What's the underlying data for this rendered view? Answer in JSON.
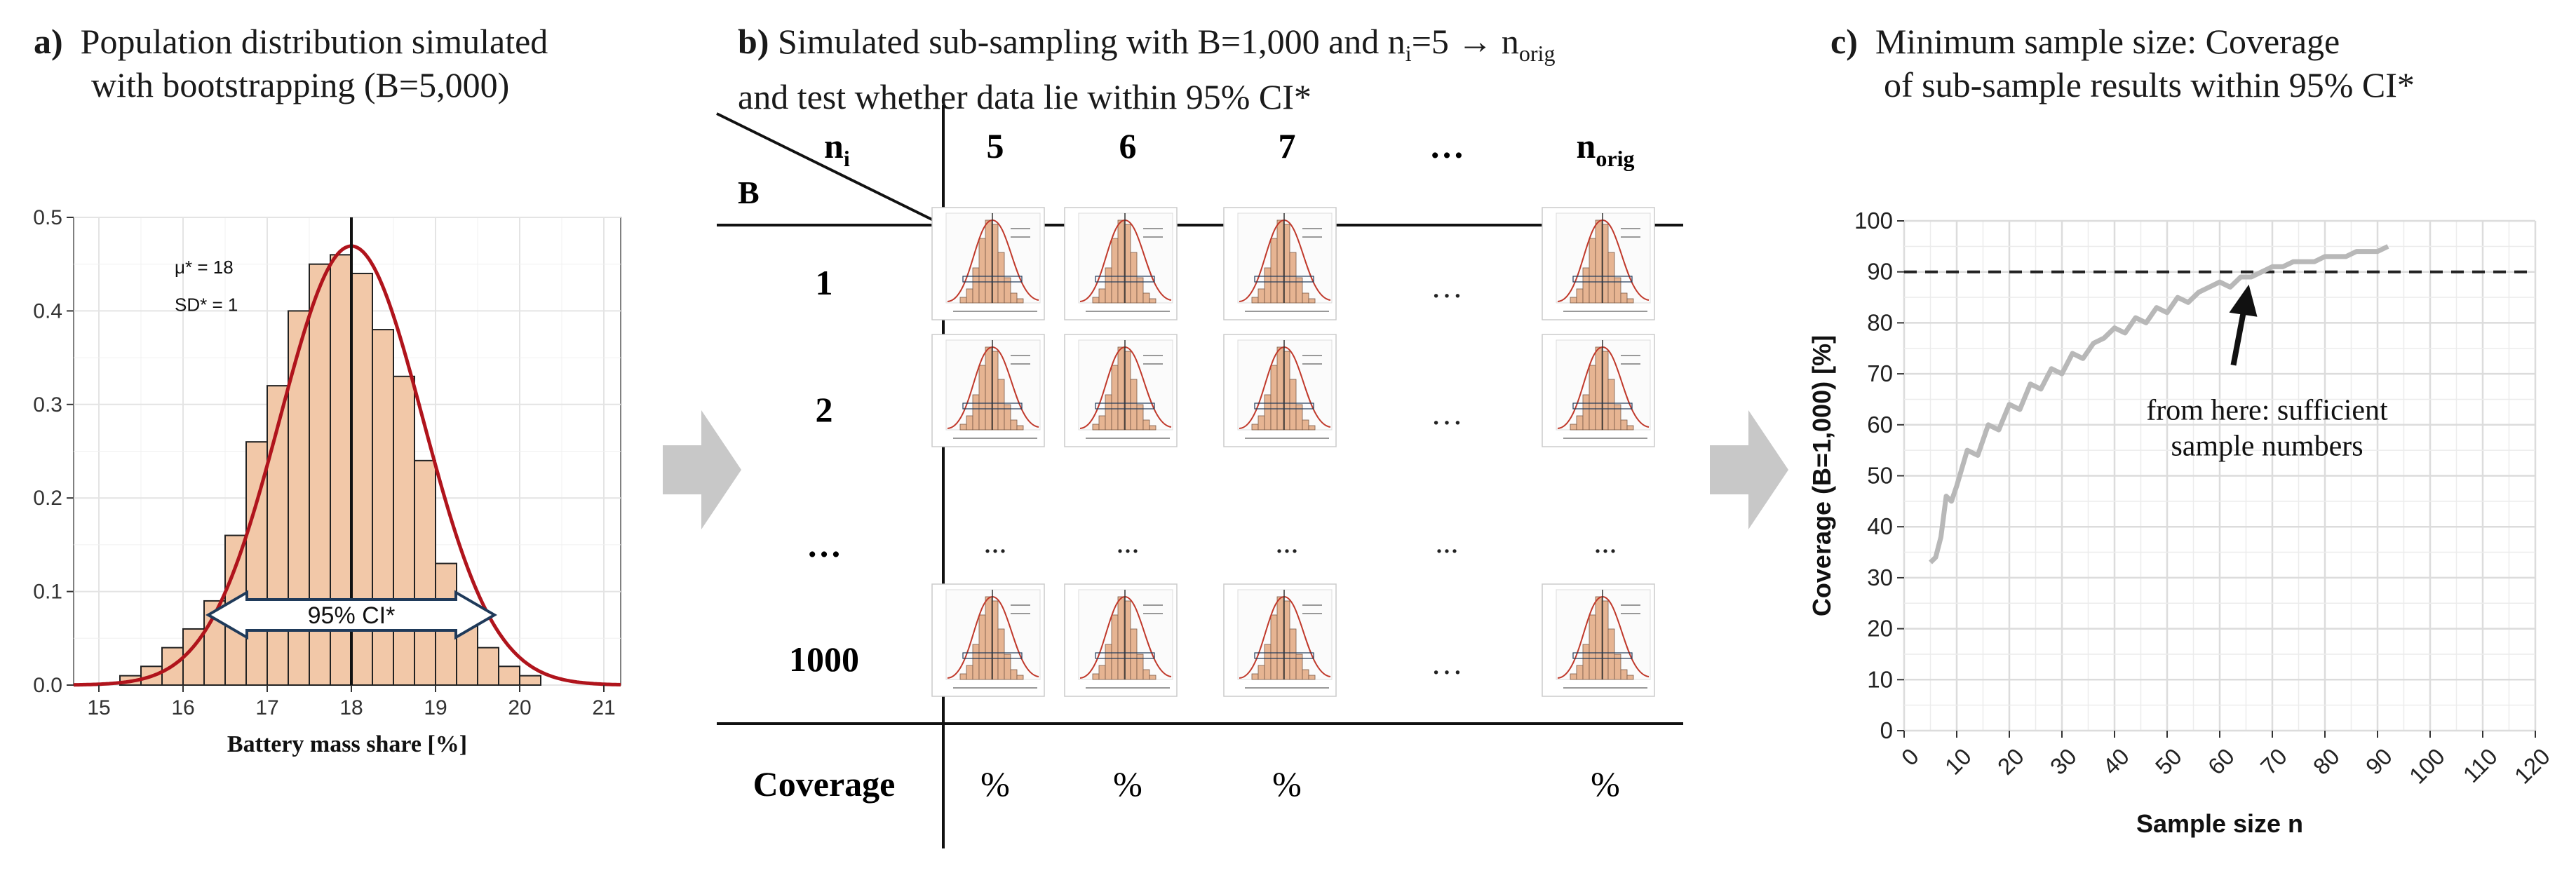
{
  "panel_a": {
    "label": "a)",
    "title_line1": "Population distribution simulated",
    "title_line2": "with bootstrapping (B=5,000)",
    "annotation_mu": "μ* = 18",
    "annotation_sd": "SD* = 1",
    "ci_label": "95% CI*",
    "colors": {
      "bar_fill": "#f2c8a8",
      "bar_stroke": "#222222",
      "curve": "#b0141c"
    },
    "chart_data": {
      "type": "bar",
      "title": "",
      "xlabel": "Battery mass share [%]",
      "ylabel": "",
      "xlim": [
        14.7,
        21.2
      ],
      "ylim": [
        0,
        0.5
      ],
      "x_ticks": [
        15,
        16,
        17,
        18,
        19,
        20,
        21
      ],
      "y_ticks": [
        0.0,
        0.1,
        0.2,
        0.3,
        0.4,
        0.5
      ],
      "bin_width": 0.25,
      "bin_starts": [
        15.25,
        15.5,
        15.75,
        16.0,
        16.25,
        16.5,
        16.75,
        17.0,
        17.25,
        17.5,
        17.75,
        18.0,
        18.25,
        18.5,
        18.75,
        19.0,
        19.25,
        19.5,
        19.75,
        20.0
      ],
      "density_hist": [
        0.01,
        0.02,
        0.04,
        0.06,
        0.09,
        0.16,
        0.26,
        0.32,
        0.4,
        0.45,
        0.46,
        0.44,
        0.38,
        0.33,
        0.24,
        0.13,
        0.07,
        0.04,
        0.02,
        0.01
      ],
      "density_curve": {
        "mean": 18,
        "sd": 0.85
      },
      "mean_line": 18,
      "ci": [
        16.3,
        19.7
      ]
    }
  },
  "panel_b": {
    "label": "b)",
    "title_line1_pre": "Simulated sub-sampling with B=1,000 and n",
    "title_line1_sub": "i",
    "title_line1_mid": "=5 → n",
    "title_line1_sub2": "orig",
    "title_line2": "and test whether data lie within 95% CI*",
    "header_n": "n",
    "header_n_sub": "i",
    "header_B": "B",
    "columns": [
      "5",
      "6",
      "7",
      "…",
      "n"
    ],
    "col_last_sub": "orig",
    "rows": [
      "1",
      "2",
      "…",
      "1000"
    ],
    "ellipsis": "…",
    "dots": "...",
    "coverage_label": "Coverage",
    "coverage_values": [
      "%",
      "%",
      "%",
      "",
      "%"
    ]
  },
  "panel_c": {
    "label": "c)",
    "title_line1": "Minimum sample size: Coverage",
    "title_line2": "of sub-sample results within 95% CI*",
    "annotation_line1": "from here: sufficient",
    "annotation_line2": "sample numbers",
    "colors": {
      "line": "#b8b8b8",
      "threshold": "#222222"
    },
    "chart_data": {
      "type": "line",
      "title": "",
      "xlabel": "Sample size n",
      "ylabel": "Coverage (B=1,000) [%]",
      "xlim": [
        0,
        120
      ],
      "ylim": [
        0,
        100
      ],
      "x_ticks": [
        0,
        10,
        20,
        30,
        40,
        50,
        60,
        70,
        80,
        90,
        100,
        110,
        120
      ],
      "y_ticks": [
        0,
        10,
        20,
        30,
        40,
        50,
        60,
        70,
        80,
        90,
        100
      ],
      "threshold": 90,
      "arrow_at_x": 65,
      "x": [
        5,
        6,
        7,
        8,
        9,
        10,
        12,
        14,
        16,
        18,
        20,
        22,
        24,
        26,
        28,
        30,
        32,
        34,
        36,
        38,
        40,
        42,
        44,
        46,
        48,
        50,
        52,
        54,
        56,
        58,
        60,
        62,
        64,
        66,
        68,
        70,
        72,
        74,
        76,
        78,
        80,
        82,
        84,
        86,
        88,
        90,
        92
      ],
      "y": [
        33,
        34,
        38,
        46,
        45,
        48,
        55,
        54,
        60,
        59,
        64,
        63,
        68,
        67,
        71,
        70,
        74,
        73,
        76,
        77,
        79,
        78,
        81,
        80,
        83,
        82,
        85,
        84,
        86,
        87,
        88,
        87,
        89,
        89,
        90,
        91,
        91,
        92,
        92,
        92,
        93,
        93,
        93,
        94,
        94,
        94,
        95
      ]
    }
  },
  "arrows": {
    "color": "#c8c8c8"
  }
}
